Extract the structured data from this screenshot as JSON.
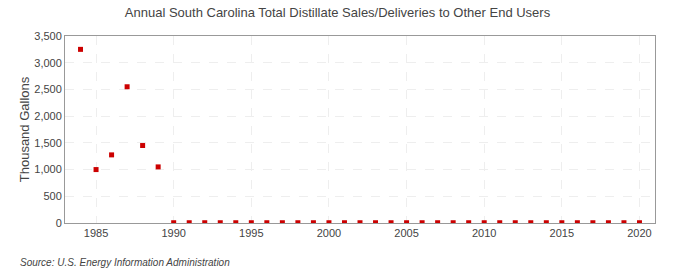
{
  "chart_data": {
    "type": "scatter",
    "title": "Annual South Carolina Total Distillate Sales/Deliveries to Other End Users",
    "ylabel": "Thousand Gallons",
    "annotation": "Source: U.S. Energy Information Administration",
    "x": [
      1984,
      1985,
      1986,
      1987,
      1988,
      1989,
      1990,
      1991,
      1992,
      1993,
      1994,
      1995,
      1996,
      1997,
      1998,
      1999,
      2000,
      2001,
      2002,
      2003,
      2004,
      2005,
      2006,
      2007,
      2008,
      2009,
      2010,
      2011,
      2012,
      2013,
      2014,
      2015,
      2016,
      2017,
      2018,
      2019,
      2020
    ],
    "values": [
      3250,
      1000,
      1275,
      2550,
      1450,
      1050,
      5,
      5,
      5,
      5,
      5,
      5,
      5,
      5,
      5,
      5,
      5,
      5,
      5,
      5,
      5,
      5,
      5,
      5,
      5,
      5,
      5,
      5,
      5,
      5,
      5,
      5,
      5,
      5,
      5,
      5,
      5
    ],
    "color": "#cc0000",
    "marker": "square",
    "xlim": [
      1983,
      2021
    ],
    "xticks": [
      1985,
      1990,
      1995,
      2000,
      2005,
      2010,
      2015,
      2020
    ],
    "ylim": [
      0,
      3500
    ],
    "yticks": [
      0,
      500,
      {
        "value": 1000,
        "label": "1,000"
      },
      {
        "value": 1500,
        "label": "1,500"
      },
      {
        "value": 2000,
        "label": "2,000"
      },
      {
        "value": 2500,
        "label": "2,500"
      },
      {
        "value": 3000,
        "label": "3,000"
      },
      {
        "value": 3500,
        "label": "3,500"
      }
    ],
    "grid": true
  }
}
